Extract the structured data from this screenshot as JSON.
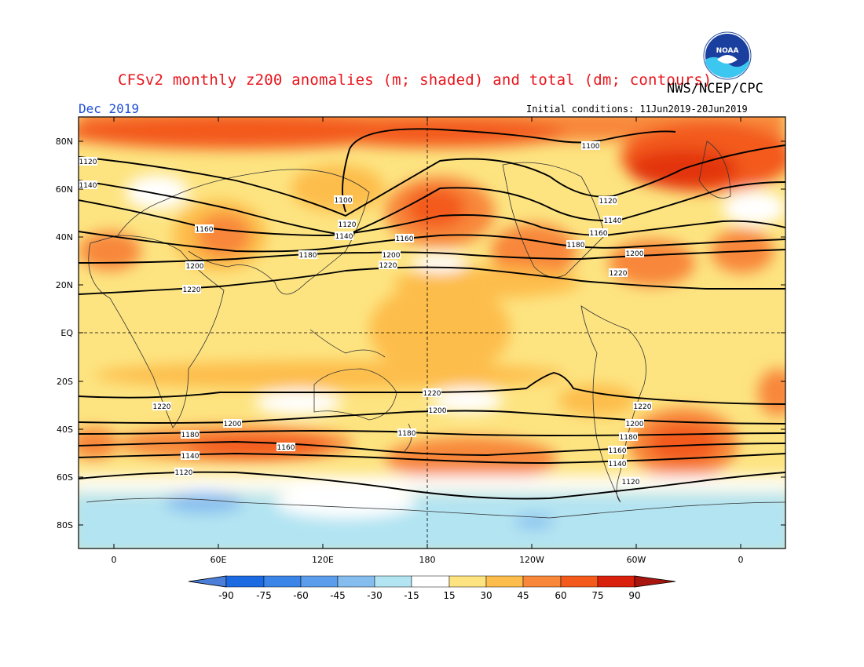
{
  "title": "CFSv2 monthly z200 anomalies (m; shaded) and total (dm; contours)",
  "agency": "NWS/NCEP/CPC",
  "logo_text": "NOAA",
  "month": "Dec 2019",
  "initial_conditions": "Initial conditions: 11Jun2019-20Jun2019",
  "axes": {
    "lat_labels": [
      "80N",
      "60N",
      "40N",
      "20N",
      "EQ",
      "20S",
      "40S",
      "60S",
      "80S"
    ],
    "lon_labels": [
      "0",
      "60E",
      "120E",
      "180",
      "120W",
      "60W",
      "0"
    ]
  },
  "colorbar": {
    "levels": [
      "-90",
      "-75",
      "-60",
      "-45",
      "-30",
      "-15",
      "15",
      "30",
      "45",
      "60",
      "75",
      "90"
    ],
    "colors": [
      "#1c6ae2",
      "#3b85e8",
      "#5b9cec",
      "#86bdef",
      "#b2e4f2",
      "#ffffff",
      "#fde481",
      "#fdbd4c",
      "#f8873a",
      "#f35a1b",
      "#d9200d",
      "#b4100c",
      "#4a7ed8",
      "#a8150f"
    ]
  },
  "contour_labels": [
    "1100",
    "1120",
    "1140",
    "1160",
    "1180",
    "1200",
    "1220"
  ],
  "colors": {
    "title": "#e8151c",
    "month": "#1f4fd8",
    "contour": "#000000",
    "coast": "#333333"
  }
}
